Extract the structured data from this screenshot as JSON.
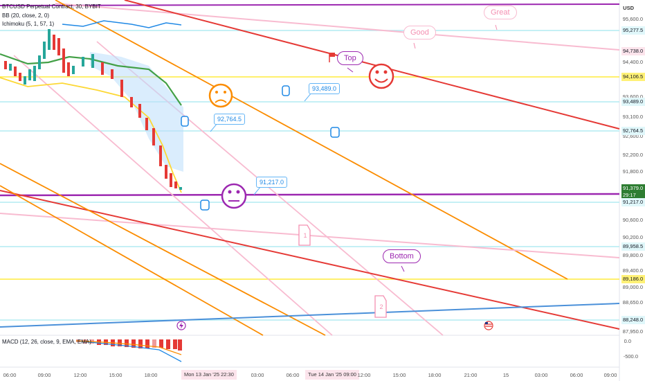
{
  "legend": {
    "symbol": "BTCUSD Perpetual Contract, 30, BYBIT",
    "bb": "BB (20, close, 2, 0)",
    "ichimoku": "Ichimoku (5, 1, 57, 1)",
    "macd": "MACD (12, 26, close, 9, EMA, EMA)"
  },
  "currency": "USD",
  "price_axis": [
    "95,600.0",
    "94,400.0",
    "93,600.0",
    "93,100.0",
    "92,600.0",
    "92,200.0",
    "91,800.0",
    "90,600.0",
    "90,200.0",
    "89,800.0",
    "89,400.0",
    "89,000.0",
    "88,650.0",
    "87,950.0"
  ],
  "price_tags": [
    {
      "value": "95,277.5",
      "color": "#e0f7fa",
      "text_color": "#333"
    },
    {
      "value": "94,738.0",
      "color": "#fce4ec",
      "text_color": "#333"
    },
    {
      "value": "94,106.5",
      "color": "#fff176",
      "text_color": "#333"
    },
    {
      "value": "93,489.0",
      "color": "#e0f7fa",
      "text_color": "#333"
    },
    {
      "value": "92,764.5",
      "color": "#e0f7fa",
      "text_color": "#333"
    },
    {
      "value": "91,379.0",
      "color": "#2e7d32",
      "text_color": "#ffffff"
    },
    {
      "value": "29:17",
      "color": "#2e7d32",
      "text_color": "#ffffff"
    },
    {
      "value": "91,217.0",
      "color": "#e0f7fa",
      "text_color": "#333"
    },
    {
      "value": "89,958.5",
      "color": "#e0f7fa",
      "text_color": "#333"
    },
    {
      "value": "89,186.0",
      "color": "#fff176",
      "text_color": "#333"
    },
    {
      "value": "88,248.0",
      "color": "#e0f7fa",
      "text_color": "#333"
    }
  ],
  "macd_axis": [
    "0.0",
    "-500.0"
  ],
  "time_axis": [
    "06:00",
    "09:00",
    "12:00",
    "15:00",
    "18:00",
    "03:00",
    "06:00",
    "12:00",
    "15:00",
    "18:00",
    "21:00",
    "15",
    "03:00",
    "06:00",
    "09:00"
  ],
  "time_pills": [
    "Mon 13 Jan '25  22:30",
    "Tue 14 Jan '25  09:00"
  ],
  "callouts": [
    "93,489.0",
    "92,764.5",
    "91,217.0"
  ],
  "bubbles": {
    "great": "Great",
    "good": "Good",
    "top": "Top",
    "bottom": "Bottom"
  },
  "numbered": [
    "1",
    "2"
  ],
  "colors": {
    "red": "#e53935",
    "orange": "#fb8c00",
    "pink": "#f8bbd0",
    "purple": "#9c27b0",
    "yellow": "#ffeb3b",
    "cyan": "#b2ebf2",
    "blue": "#4a90d9"
  },
  "icons": [
    "pointing-hand-icon",
    "smiley-icon",
    "sad-face-icon",
    "neutral-face-icon",
    "lightning-icon",
    "us-flag-icon",
    "flag-icon"
  ]
}
